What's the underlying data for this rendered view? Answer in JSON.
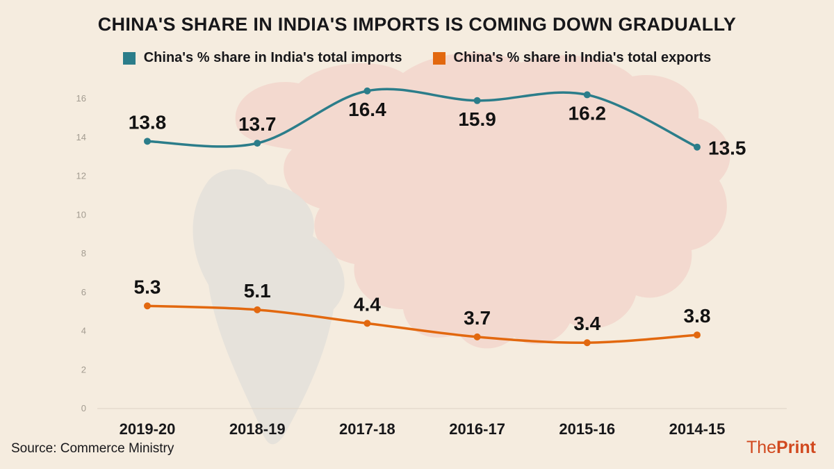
{
  "page": {
    "title": "CHINA'S SHARE IN INDIA'S IMPORTS IS COMING DOWN GRADUALLY",
    "source_label": "Source: Commerce Ministry",
    "brand": {
      "the": "The",
      "print": "Print"
    }
  },
  "colors": {
    "background": "#f5ecdf",
    "imports": "#2b7d8a",
    "exports": "#e2680f",
    "axis_text": "#a29b90",
    "label_text": "#121212",
    "category_text": "#17171a",
    "brand": "#d1491f",
    "china_map": "#f2d5ca",
    "india_map": "#e4e1da",
    "axis_line": "#ddd2c4"
  },
  "chart_data": {
    "type": "line",
    "categories": [
      "2019-20",
      "2018-19",
      "2017-18",
      "2016-17",
      "2015-16",
      "2014-15"
    ],
    "series": [
      {
        "name": "China's % share in India's total imports",
        "color_key": "imports",
        "values": [
          13.8,
          13.7,
          16.4,
          15.9,
          16.2,
          13.5
        ]
      },
      {
        "name": "China's % share in India's total exports",
        "color_key": "exports",
        "values": [
          5.3,
          5.1,
          4.4,
          3.7,
          3.4,
          3.8
        ]
      }
    ],
    "ylim": [
      0,
      17
    ],
    "yticks": [
      0,
      2,
      4,
      6,
      8,
      10,
      12,
      14,
      16
    ],
    "grid": false,
    "legend_position": "top",
    "markers": true,
    "data_labels": true
  }
}
